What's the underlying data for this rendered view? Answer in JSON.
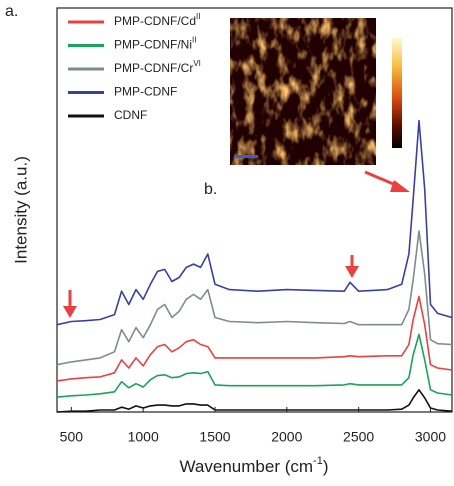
{
  "chart_data": {
    "type": "line",
    "x_label": {
      "text": "Wavenumber (cm",
      "sup": "-1",
      "end": ")"
    },
    "y_label": "Intensity (a.u.)",
    "annotations": [
      "a.",
      "b."
    ],
    "xlim": [
      400,
      3150
    ],
    "ylim": [
      0,
      100
    ],
    "xticks": [
      500,
      1000,
      1500,
      2000,
      2500,
      3000
    ],
    "x": [
      400,
      500,
      600,
      700,
      800,
      850,
      900,
      950,
      1000,
      1050,
      1100,
      1150,
      1200,
      1250,
      1300,
      1350,
      1400,
      1450,
      1500,
      1600,
      1800,
      2000,
      2200,
      2400,
      2440,
      2500,
      2700,
      2800,
      2850,
      2880,
      2920,
      2960,
      3000,
      3050,
      3150
    ],
    "series": [
      {
        "name": "PMP-CDNF/Cd",
        "sup": "II",
        "color": "#e8413f",
        "values": [
          7.7,
          8.2,
          8.5,
          8.7,
          9.7,
          12.9,
          10.9,
          13.4,
          11.4,
          14.2,
          16.2,
          16.7,
          14.9,
          15.9,
          17.4,
          17.9,
          16.7,
          16.2,
          13.4,
          13.4,
          13.4,
          13.4,
          13.4,
          13.7,
          13.9,
          13.7,
          13.9,
          13.9,
          16.7,
          22.9,
          28.6,
          21.6,
          11.7,
          10.9,
          10.4
        ]
      },
      {
        "name": "PMP-CDNF/Ni",
        "sup": "II",
        "color": "#1aa35a",
        "values": [
          3.7,
          4.0,
          4.2,
          4.5,
          5.0,
          7.5,
          6.0,
          7.0,
          6.2,
          8.0,
          9.0,
          9.2,
          8.5,
          8.7,
          9.5,
          9.7,
          9.5,
          10.0,
          6.7,
          6.5,
          6.5,
          6.5,
          6.5,
          6.7,
          7.0,
          6.7,
          6.7,
          6.7,
          8.5,
          14.2,
          19.2,
          12.9,
          5.5,
          4.7,
          4.2
        ]
      },
      {
        "name": "PMP-CDNF/Cr",
        "sup": "VI",
        "color": "#7f8c8d",
        "values": [
          11.7,
          12.4,
          12.9,
          13.4,
          14.9,
          20.4,
          17.4,
          20.9,
          18.4,
          21.6,
          25.4,
          26.6,
          23.4,
          24.9,
          27.9,
          29.1,
          27.9,
          30.3,
          23.4,
          22.4,
          22.1,
          22.4,
          22.1,
          21.9,
          22.4,
          21.6,
          21.6,
          21.6,
          25.4,
          32.8,
          44.8,
          34.1,
          17.9,
          16.9,
          16.7
        ]
      },
      {
        "name": "PMP-CDNF",
        "color": "#3b3f9f",
        "values": [
          21.6,
          22.4,
          22.6,
          22.9,
          24.1,
          29.9,
          26.6,
          30.3,
          27.9,
          31.6,
          34.8,
          35.3,
          32.3,
          33.3,
          35.8,
          36.6,
          35.8,
          39.1,
          31.6,
          30.3,
          29.9,
          30.3,
          30.1,
          29.9,
          32.1,
          29.9,
          30.3,
          31.6,
          39.1,
          52.7,
          72.1,
          55.2,
          26.6,
          24.4,
          23.4
        ]
      },
      {
        "name": "CDNF",
        "color": "#111111",
        "values": [
          0,
          0.2,
          0.2,
          0.5,
          0.5,
          1.2,
          0.7,
          1.5,
          1.0,
          1.5,
          1.7,
          1.7,
          1.5,
          1.5,
          2.0,
          2.0,
          1.7,
          1.7,
          0.5,
          0.5,
          0.5,
          0.5,
          0.5,
          0.5,
          0.5,
          0.5,
          0.5,
          0.7,
          1.7,
          3.5,
          5.5,
          3.5,
          1.0,
          0.5,
          0.2
        ]
      }
    ]
  }
}
